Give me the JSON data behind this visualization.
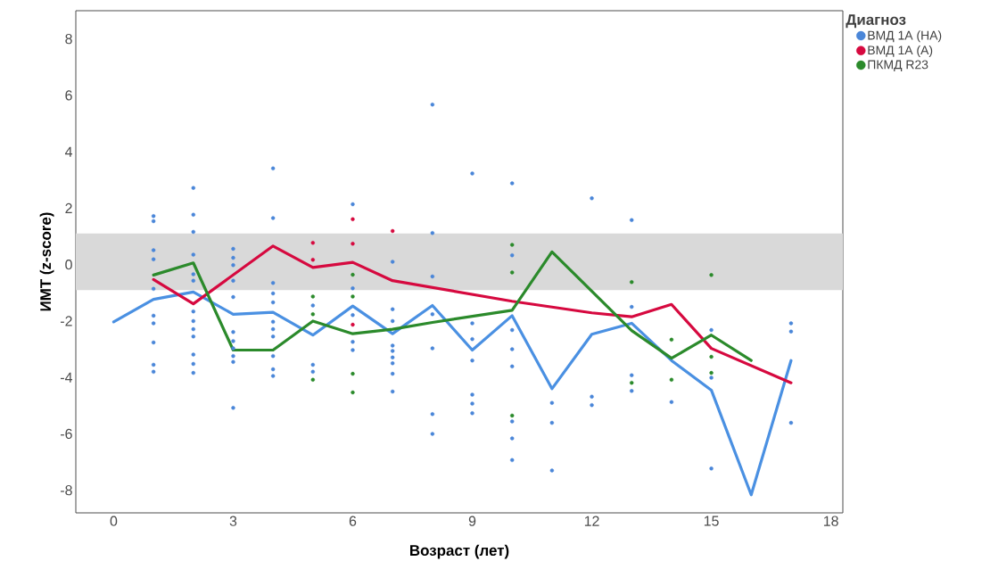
{
  "chart_data": {
    "type": "scatter",
    "xlabel": "Возраст (лет)",
    "ylabel": "ИМТ (z-score)",
    "legend_title": "Диагноз",
    "legend": "right",
    "marker": "circle",
    "xlim": [
      -0.95,
      18.3
    ],
    "ylim": [
      -8.8,
      9
    ],
    "xticks": [
      0,
      3,
      6,
      9,
      12,
      15,
      18
    ],
    "yticks": [
      -8,
      -6,
      -4,
      -2,
      0,
      2,
      4,
      6,
      8
    ],
    "bands": [
      {
        "axis": "y",
        "from": -0.9,
        "to": 1.1,
        "color": "#d9d9d9"
      }
    ],
    "series": [
      {
        "name": "ВМД 1А (НА)",
        "color": "#4a86d8",
        "x": [
          1,
          1,
          1,
          1,
          1,
          1,
          1,
          1,
          1,
          1,
          2,
          2,
          2,
          2,
          2,
          2,
          2,
          2,
          2,
          2,
          2,
          2,
          2,
          3,
          3,
          3,
          3,
          3,
          3,
          3,
          3,
          3,
          3,
          3,
          4,
          4,
          4,
          4,
          4,
          4,
          4,
          4,
          4,
          4,
          4,
          5,
          5,
          5,
          6,
          6,
          6,
          6,
          6,
          7,
          7,
          7,
          7,
          7,
          7,
          7,
          7,
          7,
          8,
          8,
          8,
          8,
          8,
          8,
          8,
          9,
          9,
          9,
          9,
          9,
          9,
          9,
          10,
          10,
          10,
          10,
          10,
          10,
          10,
          10,
          11,
          11,
          11,
          12,
          12,
          12,
          13,
          13,
          13,
          13,
          14,
          15,
          15,
          15,
          17,
          17,
          17
        ],
        "values": [
          1.72,
          1.54,
          0.51,
          0.19,
          -0.86,
          -1.81,
          -2.08,
          -2.76,
          -3.55,
          -3.8,
          2.72,
          1.77,
          1.16,
          0.35,
          -0.34,
          -0.57,
          -1.66,
          -2.0,
          -2.29,
          -2.55,
          -3.19,
          -3.52,
          -3.84,
          0.56,
          0.24,
          -0.02,
          -0.57,
          -1.15,
          -2.39,
          -2.71,
          -2.97,
          -3.24,
          -3.45,
          -5.08,
          3.41,
          1.65,
          -0.65,
          -1.02,
          -1.34,
          -2.03,
          -2.29,
          -2.55,
          -3.24,
          -3.71,
          -3.95,
          -1.45,
          -3.55,
          -3.8,
          2.14,
          -0.84,
          -1.79,
          -2.74,
          -3.03,
          0.1,
          -1.58,
          -2.0,
          -2.87,
          -3.06,
          -3.29,
          -3.5,
          -3.87,
          -4.5,
          5.67,
          1.12,
          -0.42,
          -1.76,
          -2.97,
          -5.3,
          -6.0,
          3.23,
          -2.08,
          -2.64,
          -3.4,
          -4.61,
          -4.93,
          -5.27,
          2.88,
          0.33,
          -2.32,
          -3.0,
          -3.61,
          -5.56,
          -6.16,
          -6.93,
          -4.9,
          -5.61,
          -7.3,
          2.35,
          -4.68,
          -4.98,
          1.58,
          -1.5,
          -3.92,
          -4.48,
          -4.87,
          -2.32,
          -4.01,
          -7.23,
          -2.08,
          -2.37,
          -5.61
        ]
      },
      {
        "name": "ВМД 1А (А)",
        "color": "#d6093f",
        "x": [
          5,
          5,
          6,
          6,
          6,
          7
        ],
        "values": [
          0.77,
          0.17,
          1.61,
          0.74,
          -2.13,
          1.19
        ]
      },
      {
        "name": "ПКМД R23",
        "color": "#2b8a2b",
        "x": [
          5,
          5,
          5,
          6,
          6,
          6,
          6,
          10,
          10,
          10,
          13,
          13,
          14,
          14,
          15,
          15,
          15
        ],
        "values": [
          -1.13,
          -1.76,
          -4.08,
          -0.36,
          -1.13,
          -3.87,
          -4.53,
          0.7,
          -0.28,
          -5.35,
          -0.62,
          -4.19,
          -2.66,
          -4.08,
          -0.37,
          -3.27,
          -3.84
        ]
      },
      {
        "type": "line",
        "marker": "none",
        "color": "#4a90e2",
        "x": [
          0,
          1,
          2,
          3,
          4,
          5,
          6,
          7,
          8,
          9,
          10,
          11,
          12,
          13,
          14,
          15,
          16,
          17
        ],
        "values": [
          -2.03,
          -1.23,
          -0.97,
          -1.76,
          -1.69,
          -2.5,
          -1.47,
          -2.45,
          -1.45,
          -3.03,
          -1.81,
          -4.4,
          -2.47,
          -2.08,
          -3.4,
          -4.45,
          -8.16,
          -3.4
        ]
      },
      {
        "type": "line",
        "marker": "none",
        "color": "#d6093f",
        "x": [
          1,
          2,
          4,
          5,
          6,
          7,
          10,
          12,
          13,
          14,
          15,
          17
        ],
        "values": [
          -0.53,
          -1.39,
          0.66,
          -0.1,
          0.08,
          -0.57,
          -1.3,
          -1.71,
          -1.85,
          -1.41,
          -2.97,
          -4.19
        ]
      },
      {
        "type": "line",
        "marker": "none",
        "color": "#2b8a2b",
        "x": [
          1,
          2,
          3,
          4,
          5,
          6,
          7,
          8,
          10,
          11,
          13,
          14,
          15,
          16
        ],
        "values": [
          -0.37,
          0.06,
          -3.03,
          -3.03,
          -2.0,
          -2.45,
          -2.29,
          -2.05,
          -1.62,
          0.45,
          -2.34,
          -3.32,
          -2.5,
          -3.4
        ]
      }
    ]
  }
}
